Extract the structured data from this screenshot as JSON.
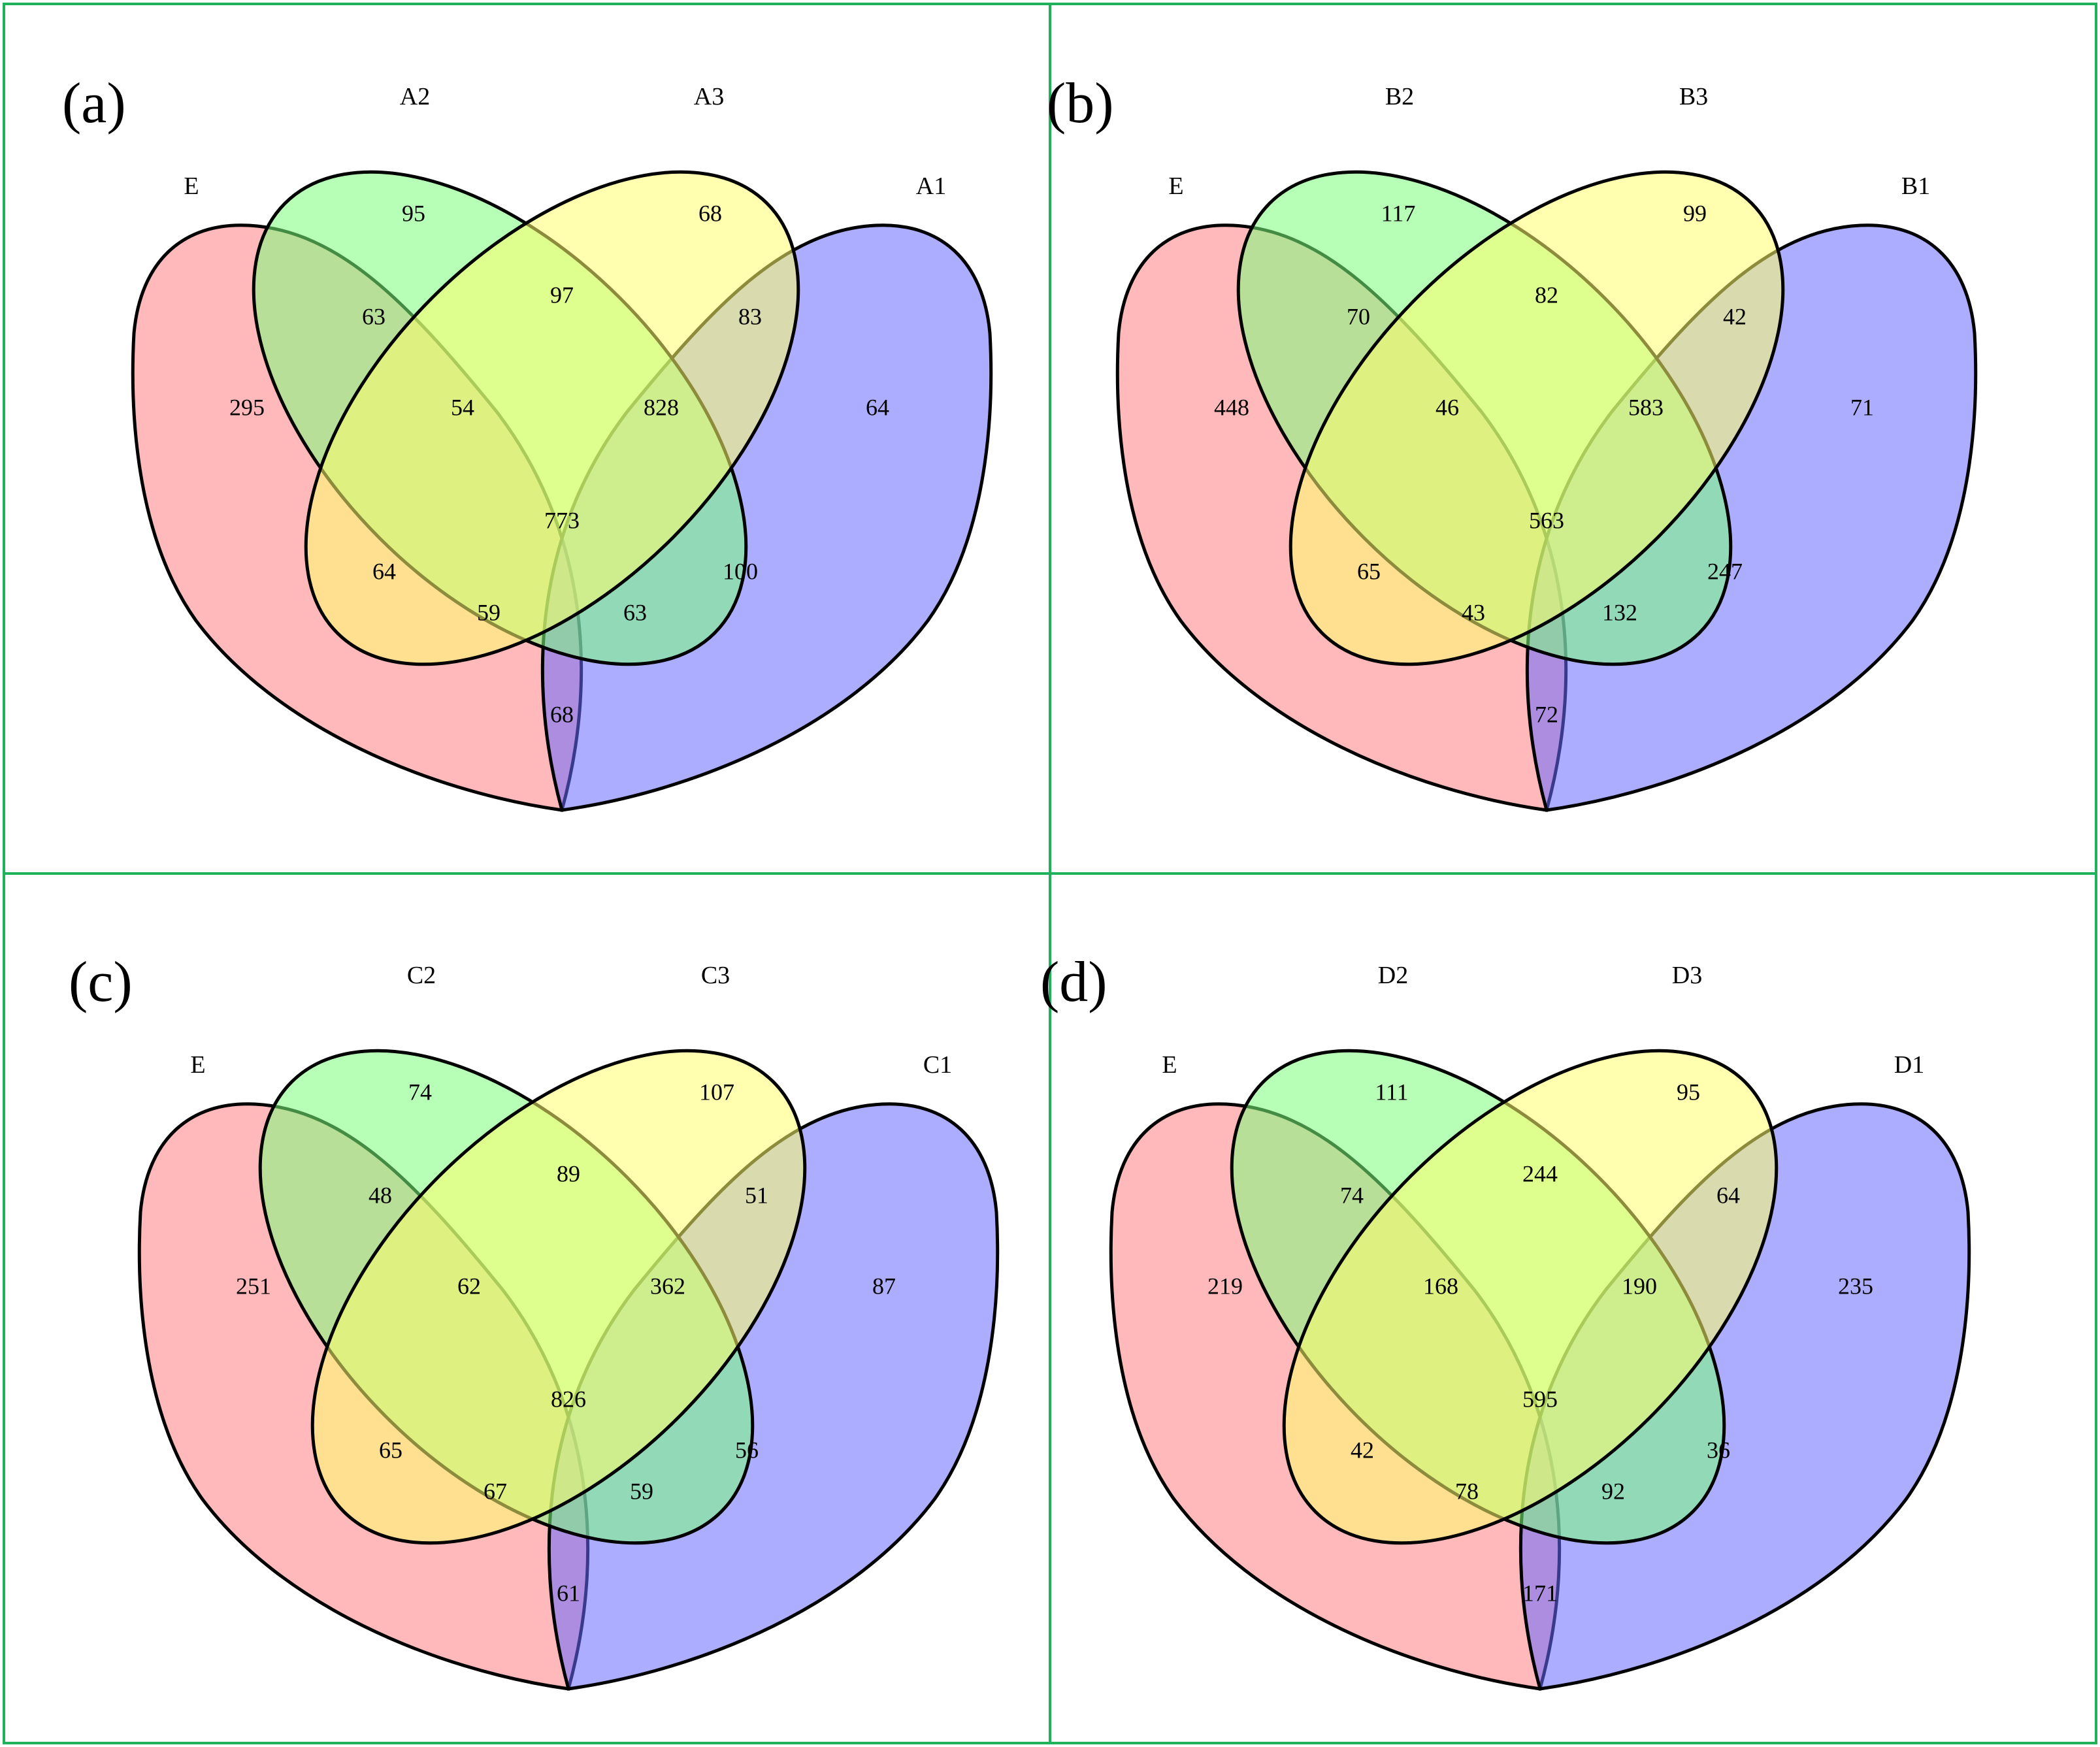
{
  "colors": {
    "frame": "#1fb25a",
    "E": "#ff7f84",
    "S1": "#6a6aff",
    "S2": "#7cff7c",
    "S3": "#ffff6e"
  },
  "panels": [
    {
      "label": "(a)",
      "sets": {
        "E": "E",
        "S2": "A2",
        "S3": "A3",
        "S1": "A1"
      },
      "regions": {
        "E": "295",
        "S2": "95",
        "S3": "68",
        "S1": "64",
        "E_S2": "63",
        "S2_S3": "97",
        "S3_S1": "83",
        "E_S2_S3": "54",
        "S2_S3_S1": "828",
        "E_S3": "64",
        "all": "773",
        "S2_S1": "100",
        "E_S3_S1": "59",
        "E_S2_S1": "63",
        "E_S1": "68"
      }
    },
    {
      "label": "(b)",
      "sets": {
        "E": "E",
        "S2": "B2",
        "S3": "B3",
        "S1": "B1"
      },
      "regions": {
        "E": "448",
        "S2": "117",
        "S3": "99",
        "S1": "71",
        "E_S2": "70",
        "S2_S3": "82",
        "S3_S1": "42",
        "E_S2_S3": "46",
        "S2_S3_S1": "583",
        "E_S3": "65",
        "all": "563",
        "S2_S1": "247",
        "E_S3_S1": "43",
        "E_S2_S1": "132",
        "E_S1": "72"
      }
    },
    {
      "label": "(c)",
      "sets": {
        "E": "E",
        "S2": "C2",
        "S3": "C3",
        "S1": "C1"
      },
      "regions": {
        "E": "251",
        "S2": "74",
        "S3": "107",
        "S1": "87",
        "E_S2": "48",
        "S2_S3": "89",
        "S3_S1": "51",
        "E_S2_S3": "62",
        "S2_S3_S1": "362",
        "E_S3": "65",
        "all": "826",
        "S2_S1": "56",
        "E_S3_S1": "67",
        "E_S2_S1": "59",
        "E_S1": "61"
      }
    },
    {
      "label": "(d)",
      "sets": {
        "E": "E",
        "S2": "D2",
        "S3": "D3",
        "S1": "D1"
      },
      "regions": {
        "E": "219",
        "S2": "111",
        "S3": "95",
        "S1": "235",
        "E_S2": "74",
        "S2_S3": "244",
        "S3_S1": "64",
        "E_S2_S3": "168",
        "S2_S3_S1": "190",
        "E_S3": "42",
        "all": "595",
        "S2_S1": "36",
        "E_S3_S1": "78",
        "E_S2_S1": "92",
        "E_S1": "171"
      }
    }
  ]
}
